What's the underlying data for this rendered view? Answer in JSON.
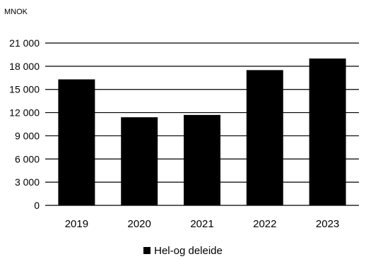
{
  "chart_data": {
    "type": "bar",
    "ylabel": "MNOK",
    "categories": [
      "2019",
      "2020",
      "2021",
      "2022",
      "2023"
    ],
    "series": [
      {
        "name": "Hel-og deleide",
        "values": [
          16300,
          11400,
          11700,
          17500,
          19000
        ],
        "color": "#000000"
      }
    ],
    "ylim": [
      0,
      21000
    ],
    "yticks": [
      0,
      3000,
      6000,
      9000,
      12000,
      15000,
      18000,
      21000
    ],
    "ytick_labels": [
      "0",
      "3 000",
      "6 000",
      "9 000",
      "12 000",
      "15 000",
      "18 000",
      "21 000"
    ],
    "grid": true,
    "legend": "bottom"
  }
}
